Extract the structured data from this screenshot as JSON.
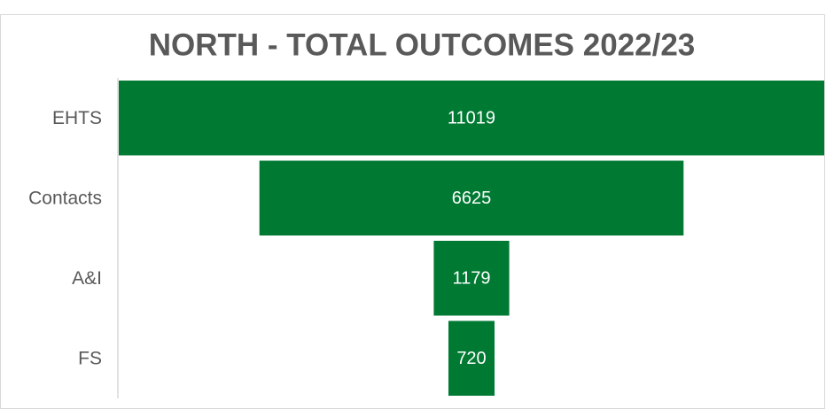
{
  "chart_data": {
    "type": "funnel",
    "title": "NORTH - TOTAL OUTCOMES 2022/23",
    "categories": [
      "EHTS",
      "Contacts",
      "A&I",
      "FS"
    ],
    "values": [
      11019,
      6625,
      1179,
      720
    ],
    "color": "#007a33"
  }
}
